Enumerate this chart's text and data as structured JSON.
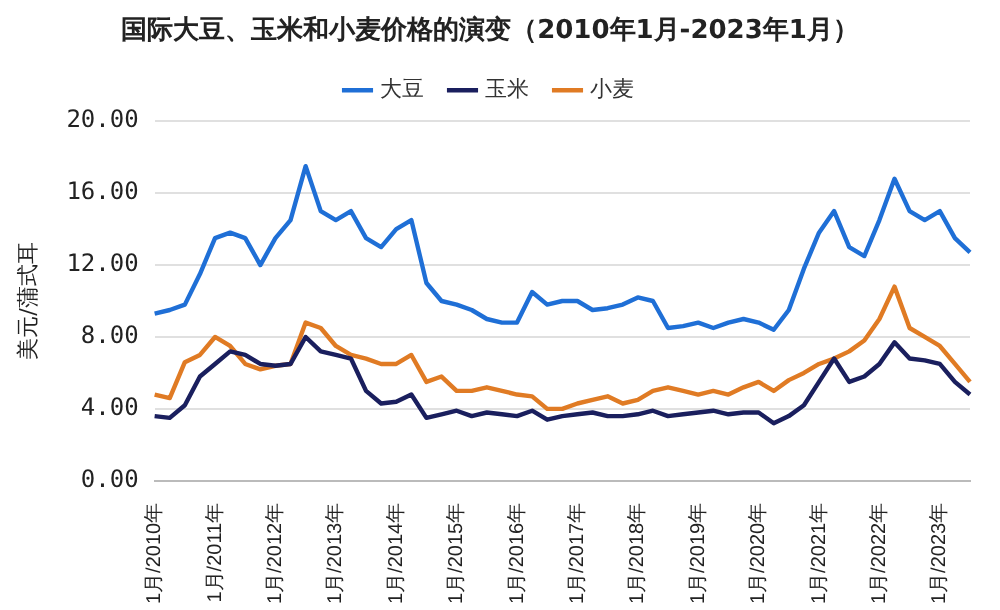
{
  "chart_data": {
    "type": "line",
    "title": "国际大豆、玉米和小麦价格的演变（2010年1月-2023年1月）",
    "ylabel": "美元/蒲式耳",
    "categories": [
      "1月/2010年",
      null,
      null,
      null,
      "1月/2011年",
      null,
      null,
      null,
      "1月/2012年",
      null,
      null,
      null,
      "1月/2013年",
      null,
      null,
      null,
      "1月/2014年",
      null,
      null,
      null,
      "1月/2015年",
      null,
      null,
      null,
      "1月/2016年",
      null,
      null,
      null,
      "1月/2017年",
      null,
      null,
      null,
      "1月/2018年",
      null,
      null,
      null,
      "1月/2019年",
      null,
      null,
      null,
      "1月/2020年",
      null,
      null,
      null,
      "1月/2021年",
      null,
      null,
      null,
      "1月/2022年",
      null,
      null,
      null,
      "1月/2023年",
      null,
      null
    ],
    "series": [
      {
        "name": "大豆",
        "color": "#1f6fd6",
        "values": [
          9.3,
          9.5,
          9.8,
          11.5,
          13.5,
          13.8,
          13.5,
          12.0,
          13.5,
          14.5,
          17.5,
          15.0,
          14.5,
          15.0,
          13.5,
          13.0,
          14.0,
          14.5,
          11.0,
          10.0,
          9.8,
          9.5,
          9.0,
          8.8,
          8.8,
          10.5,
          9.8,
          10.0,
          10.0,
          9.5,
          9.6,
          9.8,
          10.2,
          10.0,
          8.5,
          8.6,
          8.8,
          8.5,
          8.8,
          9.0,
          8.8,
          8.4,
          9.5,
          11.8,
          13.8,
          15.0,
          13.0,
          12.5,
          14.5,
          16.8,
          15.0,
          14.5,
          15.0,
          13.5,
          12.7
        ]
      },
      {
        "name": "玉米",
        "color": "#1a1f5e",
        "values": [
          3.6,
          3.5,
          4.2,
          5.8,
          6.5,
          7.2,
          7.0,
          6.5,
          6.4,
          6.5,
          8.0,
          7.2,
          7.0,
          6.8,
          5.0,
          4.3,
          4.4,
          4.8,
          3.5,
          3.7,
          3.9,
          3.6,
          3.8,
          3.7,
          3.6,
          3.9,
          3.4,
          3.6,
          3.7,
          3.8,
          3.6,
          3.6,
          3.7,
          3.9,
          3.6,
          3.7,
          3.8,
          3.9,
          3.7,
          3.8,
          3.8,
          3.2,
          3.6,
          4.2,
          5.5,
          6.8,
          5.5,
          5.8,
          6.5,
          7.7,
          6.8,
          6.7,
          6.5,
          5.5,
          4.8
        ]
      },
      {
        "name": "小麦",
        "color": "#e07b24",
        "values": [
          4.8,
          4.6,
          6.6,
          7.0,
          8.0,
          7.5,
          6.5,
          6.2,
          6.4,
          6.5,
          8.8,
          8.5,
          7.5,
          7.0,
          6.8,
          6.5,
          6.5,
          7.0,
          5.5,
          5.8,
          5.0,
          5.0,
          5.2,
          5.0,
          4.8,
          4.7,
          4.0,
          4.0,
          4.3,
          4.5,
          4.7,
          4.3,
          4.5,
          5.0,
          5.2,
          5.0,
          4.8,
          5.0,
          4.8,
          5.2,
          5.5,
          5.0,
          5.6,
          6.0,
          6.5,
          6.8,
          7.2,
          7.8,
          9.0,
          10.8,
          8.5,
          8.0,
          7.5,
          6.5,
          5.5
        ]
      }
    ],
    "ylim": [
      0,
      20
    ],
    "yticks": [
      {
        "value": 0,
        "label": "0.00"
      },
      {
        "value": 4,
        "label": "4.00"
      },
      {
        "value": 8,
        "label": "8.00"
      },
      {
        "value": 12,
        "label": "12.00"
      },
      {
        "value": 16,
        "label": "16.00"
      },
      {
        "value": 20,
        "label": "20.00"
      }
    ],
    "grid": "y",
    "legend": "top",
    "marker": "none",
    "line_style": "solid"
  }
}
